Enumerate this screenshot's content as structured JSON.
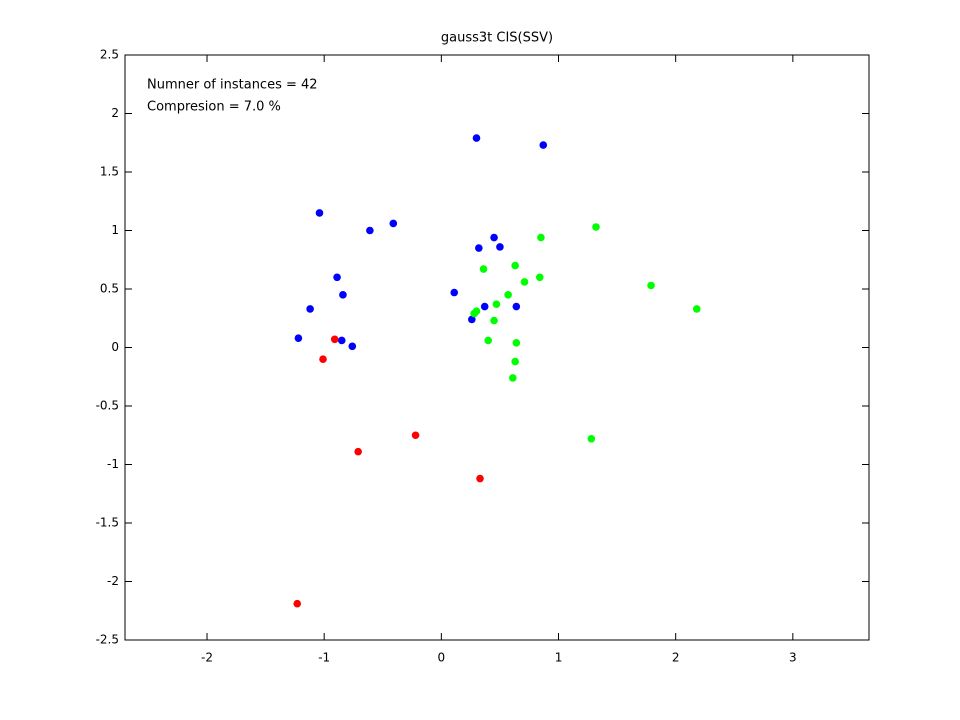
{
  "chart_data": {
    "type": "scatter",
    "title": "gauss3t CIS(SSV)",
    "annotations": [
      "Numner of instances = 42",
      "Compresion = 7.0 %"
    ],
    "xlim": [
      -2.7,
      3.65
    ],
    "ylim": [
      -2.5,
      2.5
    ],
    "xticks": [
      -2,
      -1,
      0,
      1,
      2,
      3
    ],
    "yticks": [
      -2.5,
      -2,
      -1.5,
      -1,
      -0.5,
      0,
      0.5,
      1,
      1.5,
      2,
      2.5
    ],
    "grid": false,
    "series": [
      {
        "color": "#0000ff",
        "x": [
          0.3,
          0.87,
          -1.04,
          -0.41,
          -0.61,
          0.32,
          0.45,
          0.5,
          -0.89,
          -0.84,
          -1.12,
          0.11,
          0.37,
          0.64,
          0.26,
          -1.22,
          -0.85,
          -0.76
        ],
        "values": [
          1.79,
          1.73,
          1.15,
          1.06,
          1.0,
          0.85,
          0.94,
          0.86,
          0.6,
          0.45,
          0.33,
          0.47,
          0.35,
          0.35,
          0.24,
          0.08,
          0.06,
          0.01
        ]
      },
      {
        "color": "#ff0000",
        "x": [
          -0.91,
          -1.01,
          -0.22,
          -0.71,
          0.33,
          -1.23
        ],
        "values": [
          0.07,
          -0.1,
          -0.75,
          -0.89,
          -1.12,
          -2.19
        ]
      },
      {
        "color": "#00ff00",
        "x": [
          1.32,
          0.85,
          0.63,
          0.36,
          0.71,
          0.84,
          1.79,
          2.18,
          0.57,
          0.47,
          0.3,
          0.28,
          0.45,
          0.4,
          0.64,
          0.63,
          0.61,
          1.28
        ],
        "values": [
          1.03,
          0.94,
          0.7,
          0.67,
          0.56,
          0.6,
          0.53,
          0.33,
          0.45,
          0.37,
          0.31,
          0.29,
          0.23,
          0.06,
          0.04,
          -0.12,
          -0.26,
          -0.78
        ]
      }
    ]
  }
}
